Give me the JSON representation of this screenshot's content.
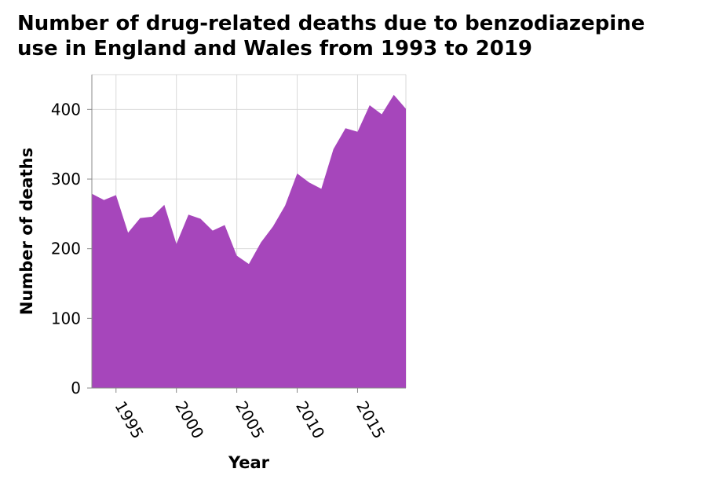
{
  "chart_data": {
    "type": "area",
    "title_lines": [
      "Number of drug-related deaths due to benzodiazepine",
      "use in England and Wales from 1993 to 2019"
    ],
    "xlabel": "Year",
    "ylabel": "Number of deaths",
    "xlim": [
      1993,
      2019
    ],
    "ylim": [
      0,
      450
    ],
    "x_ticks": [
      1995,
      2000,
      2005,
      2010,
      2015
    ],
    "y_ticks": [
      0,
      100,
      200,
      300,
      400
    ],
    "grid": true,
    "fill_color": "#a646bb",
    "x": [
      1993,
      1994,
      1995,
      1996,
      1997,
      1998,
      1999,
      2000,
      2001,
      2002,
      2003,
      2004,
      2005,
      2006,
      2007,
      2008,
      2009,
      2010,
      2011,
      2012,
      2013,
      2014,
      2015,
      2016,
      2017,
      2018,
      2019
    ],
    "values": [
      279,
      270,
      277,
      223,
      244,
      246,
      263,
      207,
      249,
      243,
      226,
      234,
      190,
      178,
      209,
      232,
      262,
      308,
      295,
      286,
      343,
      373,
      368,
      406,
      393,
      421,
      401
    ]
  }
}
